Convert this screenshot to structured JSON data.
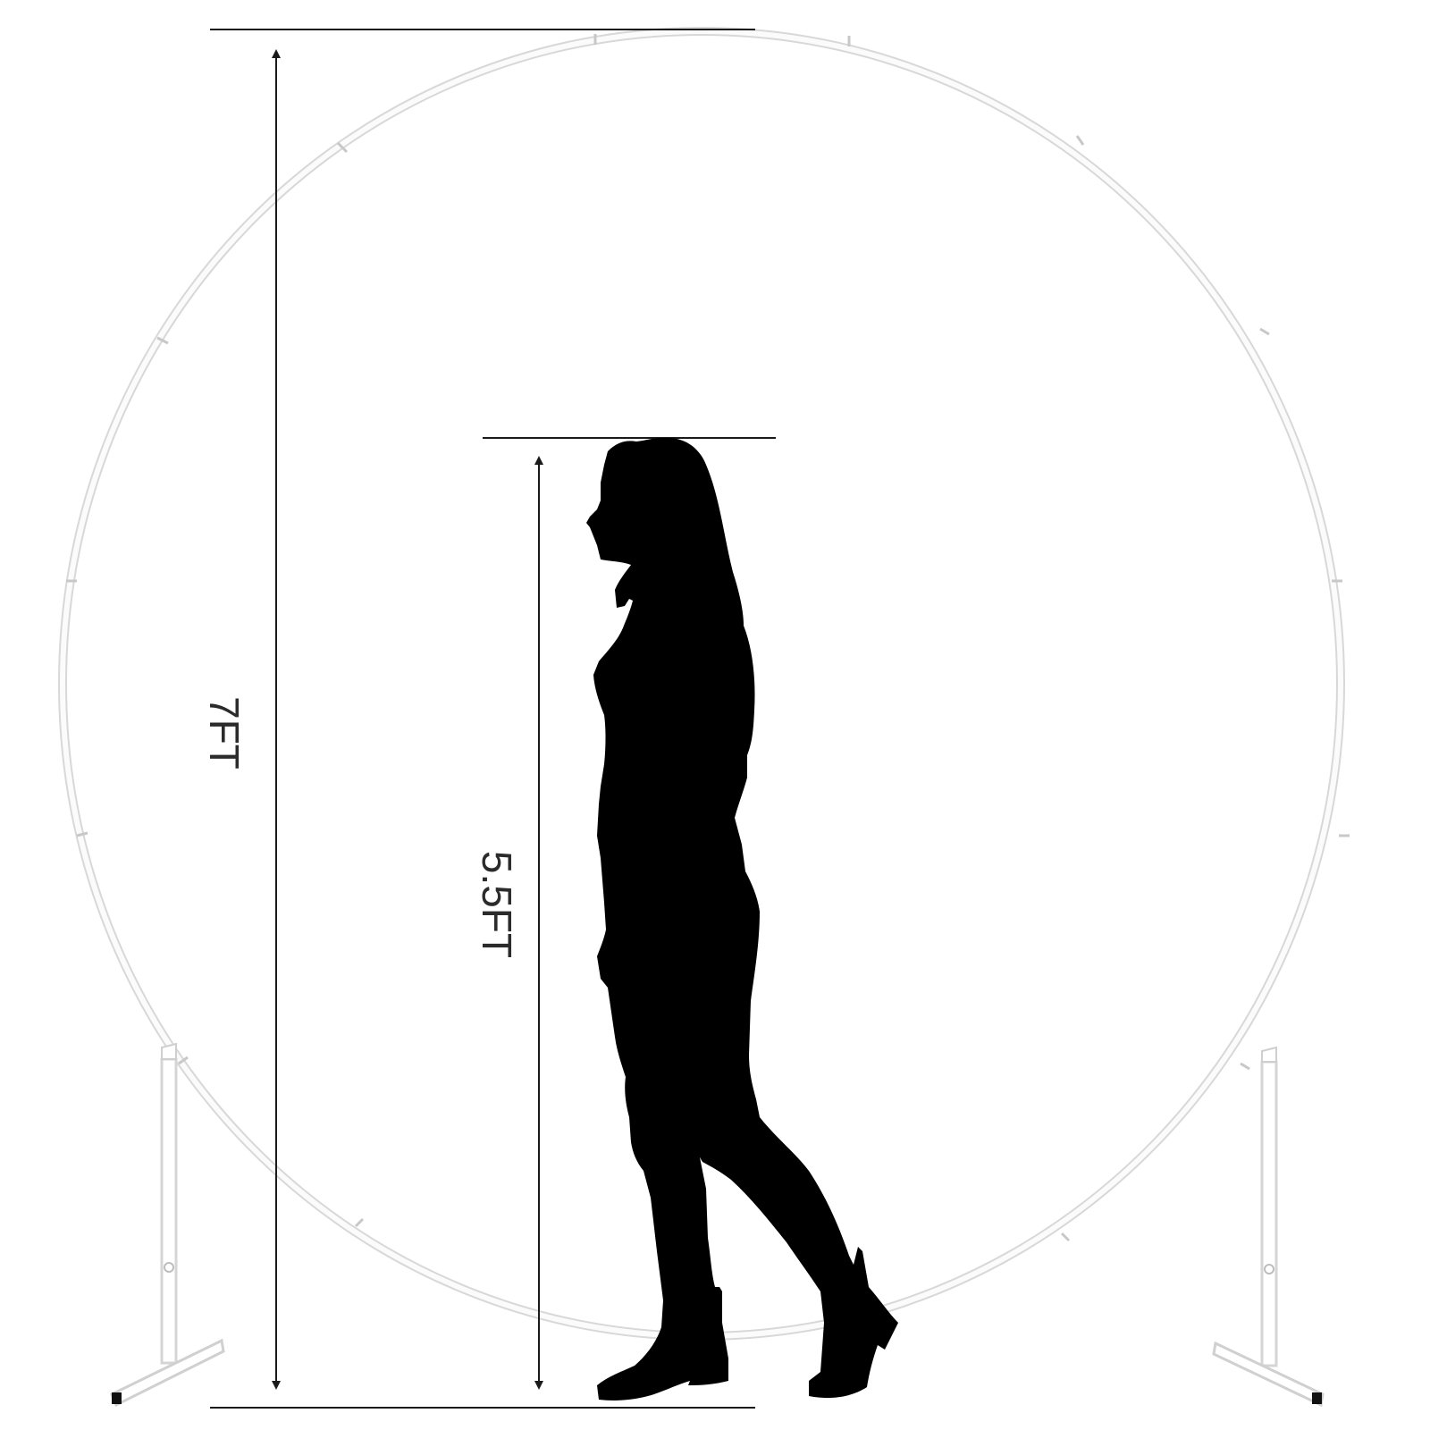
{
  "dimensions": {
    "arch_height_label": "7FT",
    "person_height_label": "5.5FT"
  },
  "colors": {
    "arch_outer": "#dcdcdc",
    "arch_inner": "#ffffff",
    "silhouette": "#000000",
    "dimension_line": "#1a1a1a",
    "background": "#ffffff"
  }
}
